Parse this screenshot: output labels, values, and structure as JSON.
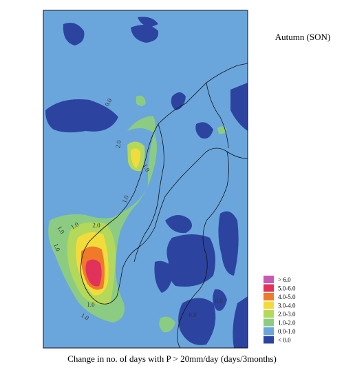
{
  "title": "Autumn (SON)",
  "caption": "Change in no. of days with P > 20mm/day (days/3months)",
  "legend": [
    {
      "label": "> 6.0",
      "color": "#c85ab4"
    },
    {
      "label": "5.0-6.0",
      "color": "#e0325a"
    },
    {
      "label": "4.0-5.0",
      "color": "#ee7a2a"
    },
    {
      "label": "3.0-4.0",
      "color": "#f2dc3c"
    },
    {
      "label": "2.0-3.0",
      "color": "#b4d85a"
    },
    {
      "label": "1.0-2.0",
      "color": "#8ccc82"
    },
    {
      "label": "0.0-1.0",
      "color": "#6aa6dc"
    },
    {
      "label": "< 0.0",
      "color": "#2c44a0"
    }
  ],
  "contour_labels": [
    "0.0",
    "1.0",
    "1.0",
    "2.0",
    "1.0",
    "1.0",
    "1.0",
    "2.0",
    "1.0",
    "0.0",
    "0.0",
    "1.0"
  ]
}
